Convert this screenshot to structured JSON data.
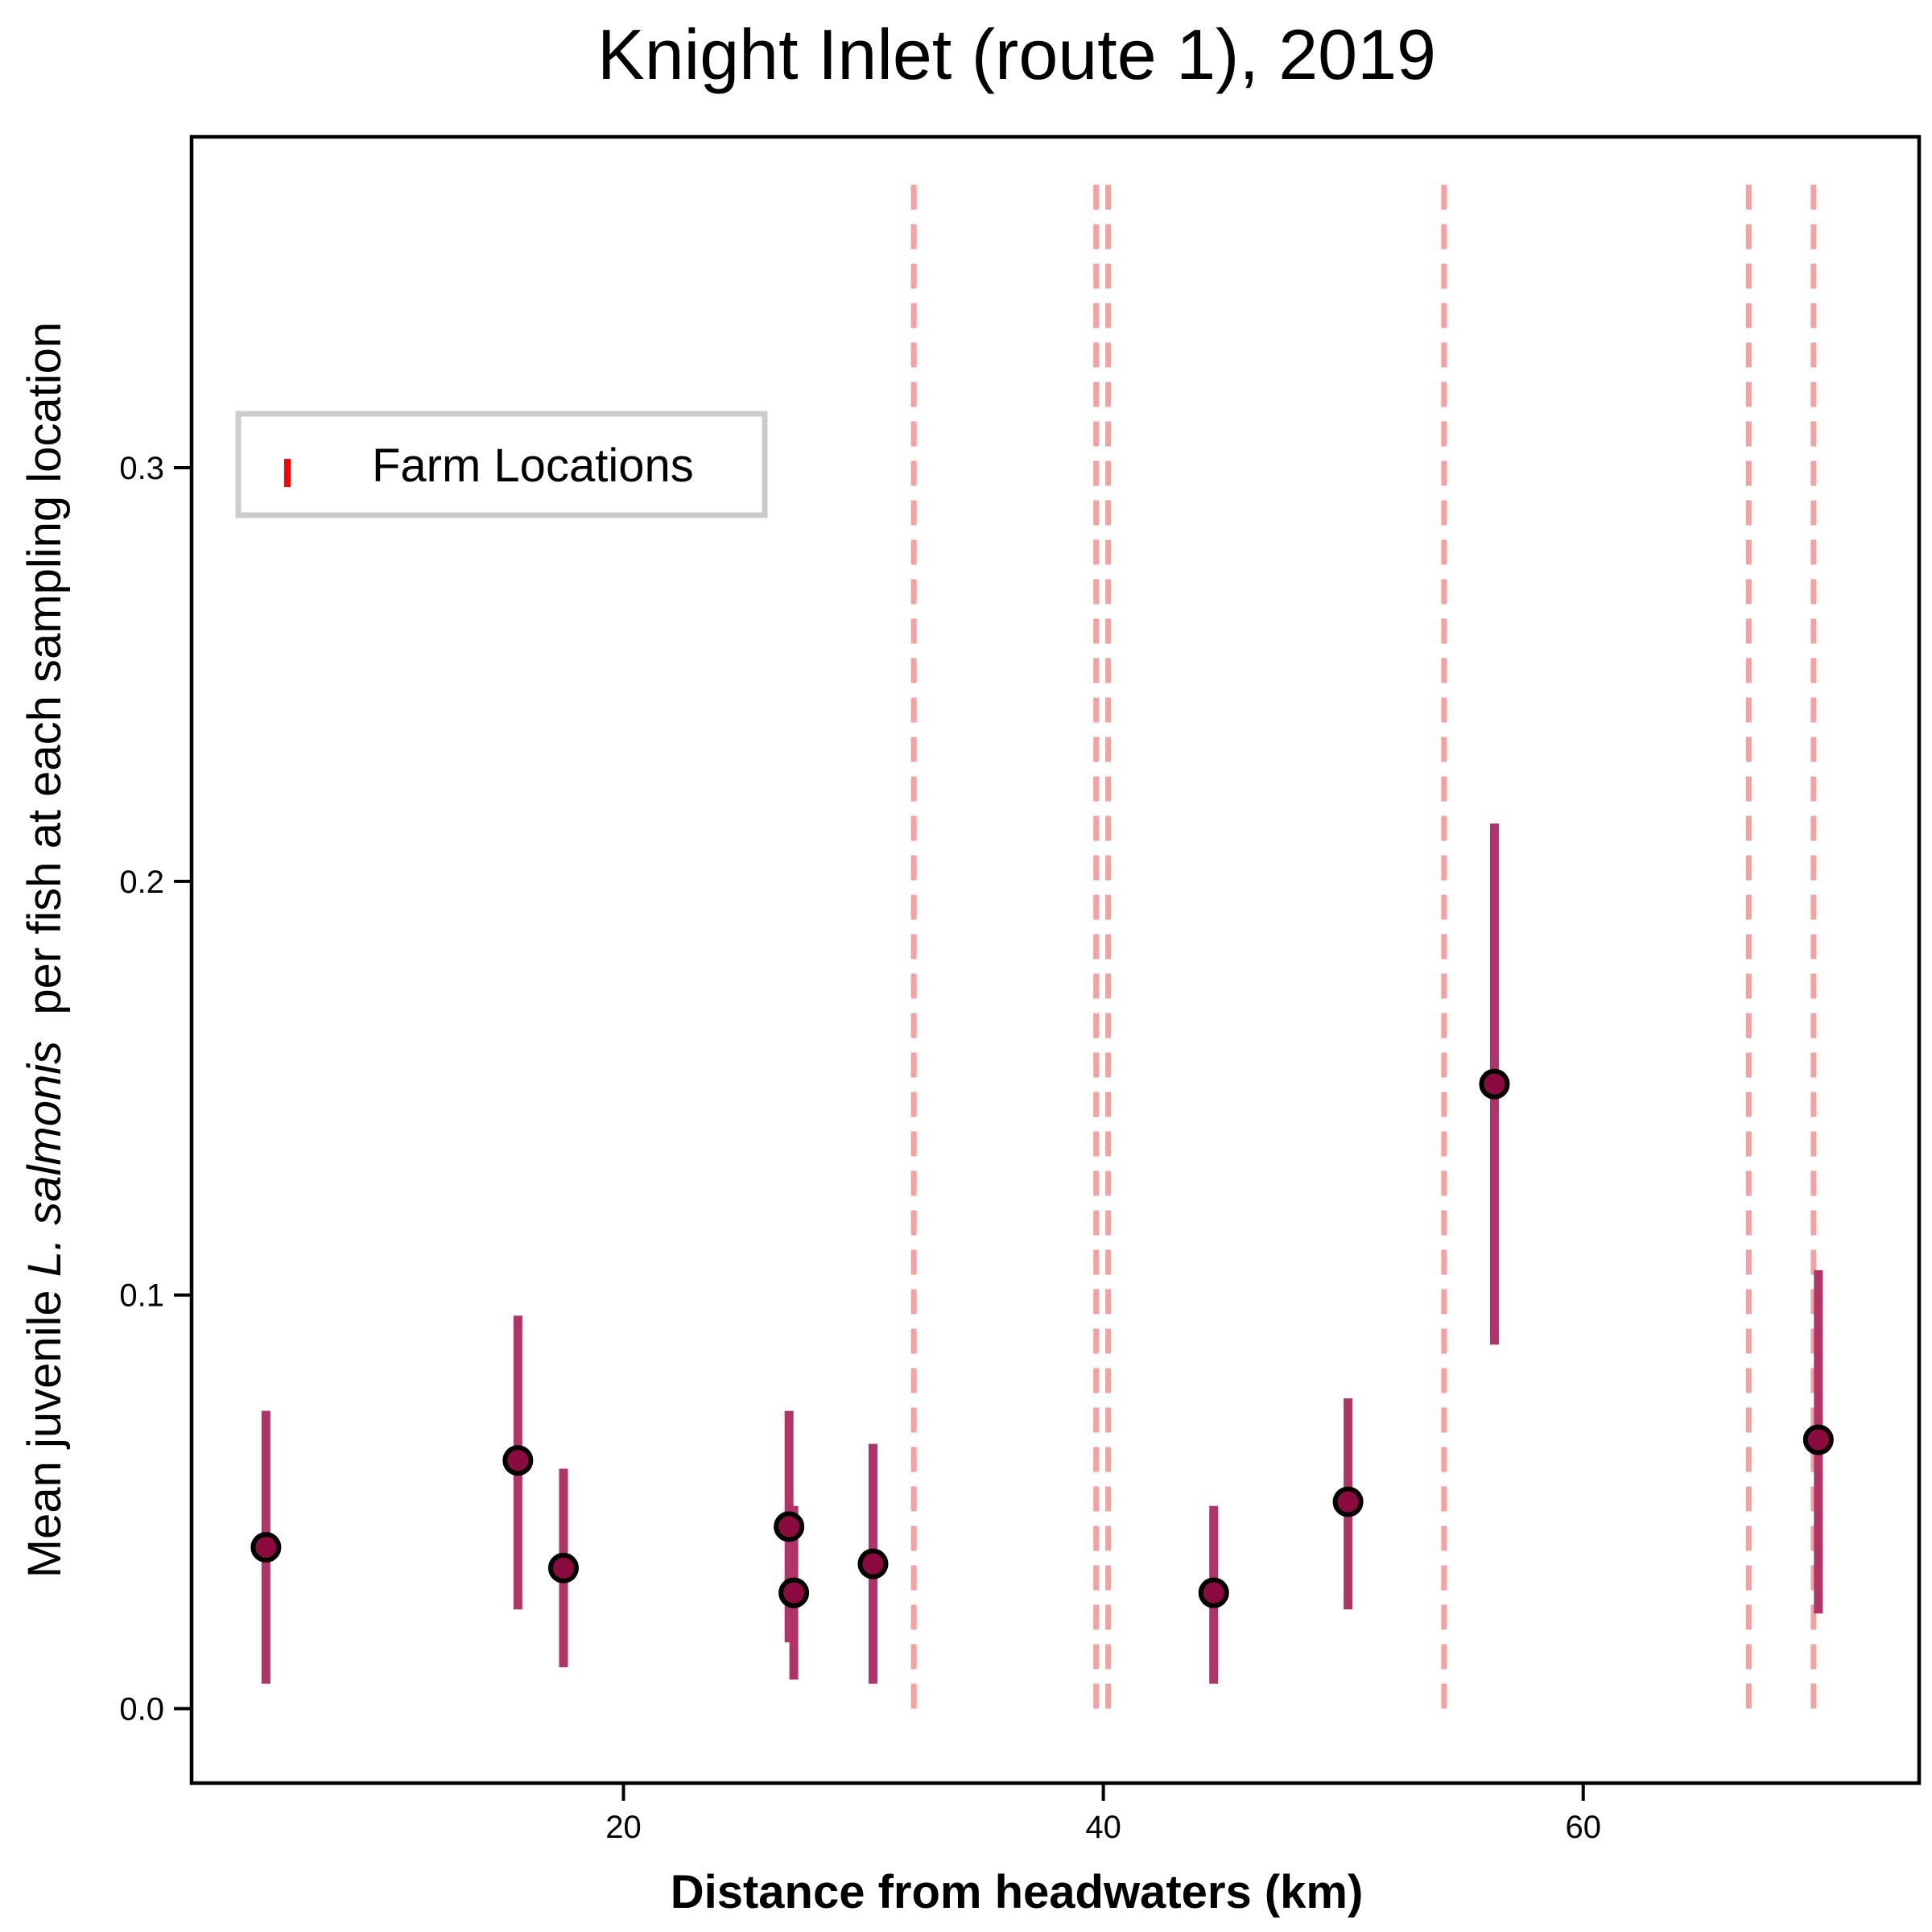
{
  "chart_data": {
    "type": "scatter",
    "title": "Knight Inlet (route 1), 2019",
    "xlabel": "Distance from headwaters (km)",
    "ylabel": {
      "prefix": "Mean juvenile ",
      "italic": "L. salmonis",
      "suffix": "  per fish at each sampling location"
    },
    "xlim": [
      2,
      74
    ],
    "ylim": [
      -0.018,
      0.38
    ],
    "x_ticks": [
      20,
      40,
      60
    ],
    "x_tick_labels": [
      "20",
      "40",
      "60"
    ],
    "y_ticks": [
      0.0,
      0.1,
      0.2,
      0.3
    ],
    "y_tick_labels": [
      "0.0",
      "0.1",
      "0.2",
      "0.3"
    ],
    "grid": false,
    "legend": {
      "placement": "upper-left",
      "entries": [
        "Farm Locations"
      ]
    },
    "farm_locations": [
      32.1,
      39.7,
      40.2,
      54.2,
      66.9,
      69.6
    ],
    "farm_line_ymax": 0.371,
    "points": [
      {
        "x": 5.1,
        "y": 0.039,
        "lo": 0.006,
        "hi": 0.072
      },
      {
        "x": 15.6,
        "y": 0.06,
        "lo": 0.024,
        "hi": 0.095
      },
      {
        "x": 17.5,
        "y": 0.034,
        "lo": 0.01,
        "hi": 0.058
      },
      {
        "x": 26.9,
        "y": 0.044,
        "lo": 0.016,
        "hi": 0.072
      },
      {
        "x": 27.1,
        "y": 0.028,
        "lo": 0.007,
        "hi": 0.049
      },
      {
        "x": 30.4,
        "y": 0.035,
        "lo": 0.006,
        "hi": 0.064
      },
      {
        "x": 44.6,
        "y": 0.028,
        "lo": 0.006,
        "hi": 0.049
      },
      {
        "x": 50.2,
        "y": 0.05,
        "lo": 0.024,
        "hi": 0.075
      },
      {
        "x": 56.3,
        "y": 0.151,
        "lo": 0.088,
        "hi": 0.214
      },
      {
        "x": 69.8,
        "y": 0.065,
        "lo": 0.023,
        "hi": 0.106
      }
    ],
    "colors": {
      "point_fill": "#8b0a3f",
      "point_edge": "#000000",
      "errorbar": "#b03468",
      "farm_line": "#f7a0a0",
      "legend_marker": "#ff0000",
      "legend_border": "#cccccc"
    }
  }
}
